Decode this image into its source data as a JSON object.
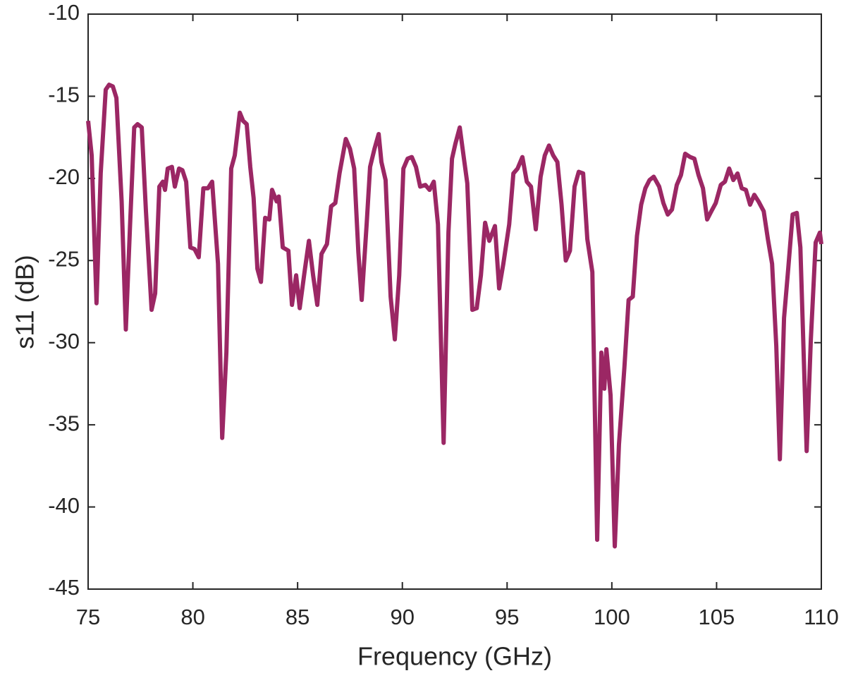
{
  "chart_data": {
    "type": "line",
    "xlabel": "Frequency (GHz)",
    "ylabel": "s11 (dB)",
    "xlim": [
      75,
      110
    ],
    "ylim": [
      -45,
      -10
    ],
    "xticks": [
      75,
      80,
      85,
      90,
      95,
      100,
      105,
      110
    ],
    "yticks": [
      -45,
      -40,
      -35,
      -30,
      -25,
      -20,
      -15,
      -10
    ],
    "grid": false,
    "series": [
      {
        "color": "#9b2764",
        "x": [
          75,
          75.17,
          75.4,
          75.6,
          75.84,
          76.0,
          76.18,
          76.35,
          76.6,
          76.8,
          77.0,
          77.2,
          77.36,
          77.56,
          77.76,
          78.03,
          78.2,
          78.4,
          78.57,
          78.67,
          78.8,
          79.0,
          79.14,
          79.34,
          79.5,
          79.68,
          79.88,
          80.08,
          80.28,
          80.5,
          80.72,
          80.92,
          81.2,
          81.4,
          81.6,
          81.83,
          82.0,
          82.24,
          82.4,
          82.57,
          82.74,
          82.9,
          83.08,
          83.25,
          83.45,
          83.65,
          83.78,
          84.0,
          84.1,
          84.29,
          84.56,
          84.73,
          84.93,
          85.1,
          85.33,
          85.54,
          85.74,
          85.94,
          86.14,
          86.4,
          86.6,
          86.8,
          87.0,
          87.3,
          87.5,
          87.7,
          87.9,
          88.06,
          88.3,
          88.46,
          88.67,
          88.87,
          89.0,
          89.2,
          89.44,
          89.64,
          89.85,
          90.05,
          90.25,
          90.45,
          90.65,
          90.85,
          91.1,
          91.3,
          91.5,
          91.7,
          91.97,
          92.2,
          92.37,
          92.53,
          92.74,
          92.94,
          93.1,
          93.34,
          93.55,
          93.75,
          93.95,
          94.15,
          94.42,
          94.62,
          94.82,
          95.1,
          95.3,
          95.5,
          95.73,
          95.94,
          96.14,
          96.37,
          96.6,
          96.8,
          97.0,
          97.2,
          97.4,
          97.6,
          97.8,
          98.0,
          98.22,
          98.42,
          98.63,
          98.83,
          99.07,
          99.3,
          99.5,
          99.64,
          99.74,
          99.94,
          100.14,
          100.34,
          100.6,
          100.8,
          101.0,
          101.2,
          101.4,
          101.6,
          101.8,
          102.0,
          102.26,
          102.46,
          102.67,
          102.87,
          103.1,
          103.3,
          103.5,
          103.74,
          103.94,
          104.14,
          104.35,
          104.55,
          104.75,
          104.96,
          105.2,
          105.4,
          105.6,
          105.8,
          106.0,
          106.2,
          106.4,
          106.6,
          106.8,
          107.0,
          107.25,
          107.45,
          107.65,
          107.85,
          108.02,
          108.22,
          108.42,
          108.63,
          108.83,
          109.0,
          109.3,
          109.5,
          109.73,
          109.93,
          110.0
        ],
        "values": [
          -16.5,
          -18.6,
          -27.6,
          -19.7,
          -14.6,
          -14.3,
          -14.4,
          -15.1,
          -21.4,
          -29.2,
          -22.9,
          -16.9,
          -16.7,
          -16.9,
          -22.0,
          -28.0,
          -27.0,
          -20.5,
          -20.2,
          -20.7,
          -19.4,
          -19.3,
          -20.5,
          -19.4,
          -19.5,
          -20.2,
          -24.2,
          -24.3,
          -24.8,
          -20.6,
          -20.6,
          -20.2,
          -25.2,
          -35.8,
          -30.6,
          -19.4,
          -18.6,
          -16.0,
          -16.5,
          -16.7,
          -19.3,
          -21.2,
          -25.5,
          -26.3,
          -22.4,
          -22.5,
          -20.7,
          -21.4,
          -21.1,
          -24.2,
          -24.4,
          -27.7,
          -25.9,
          -27.9,
          -25.7,
          -23.8,
          -25.9,
          -27.7,
          -24.6,
          -24.0,
          -21.7,
          -21.5,
          -19.7,
          -17.6,
          -18.2,
          -19.4,
          -24.5,
          -27.4,
          -22.7,
          -19.3,
          -18.2,
          -17.3,
          -19.0,
          -20.1,
          -27.2,
          -29.8,
          -25.9,
          -19.4,
          -18.8,
          -18.7,
          -19.3,
          -20.5,
          -20.4,
          -20.7,
          -20.2,
          -22.8,
          -36.1,
          -23.3,
          -18.8,
          -17.9,
          -16.9,
          -18.8,
          -20.3,
          -28.0,
          -27.9,
          -25.9,
          -22.7,
          -23.8,
          -22.9,
          -26.7,
          -25.2,
          -22.8,
          -19.7,
          -19.4,
          -18.7,
          -20.2,
          -20.5,
          -23.1,
          -19.9,
          -18.6,
          -18.0,
          -18.6,
          -19.0,
          -21.6,
          -25.0,
          -24.4,
          -20.5,
          -19.6,
          -19.7,
          -23.7,
          -25.7,
          -42.0,
          -30.6,
          -32.8,
          -30.4,
          -33.2,
          -42.4,
          -36.2,
          -31.5,
          -27.4,
          -27.2,
          -23.5,
          -21.6,
          -20.6,
          -20.1,
          -19.9,
          -20.5,
          -21.5,
          -22.2,
          -21.9,
          -20.4,
          -19.8,
          -18.5,
          -18.7,
          -18.8,
          -19.8,
          -20.6,
          -22.5,
          -22.0,
          -21.5,
          -20.4,
          -20.2,
          -19.4,
          -20.1,
          -19.7,
          -20.6,
          -20.7,
          -21.6,
          -21.0,
          -21.4,
          -22.0,
          -23.7,
          -25.2,
          -30.2,
          -37.1,
          -28.5,
          -25.5,
          -22.2,
          -22.1,
          -24.2,
          -36.6,
          -29.8,
          -23.9,
          -23.3,
          -24.0
        ]
      }
    ]
  }
}
